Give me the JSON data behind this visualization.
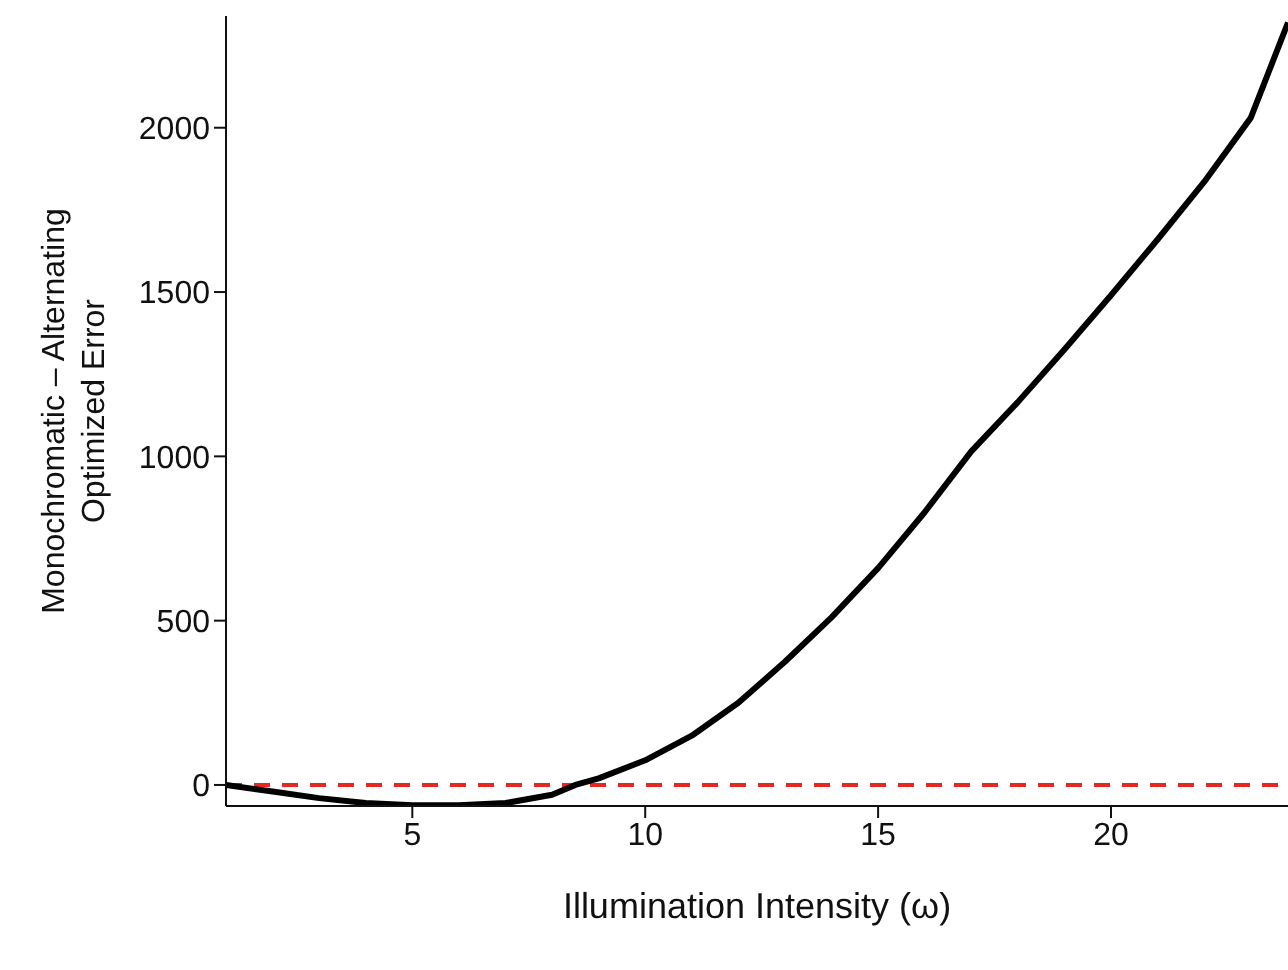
{
  "chart_data": {
    "type": "line",
    "xlabel": "Illumination Intensity (ω)",
    "ylabel": "Monochromatic – Alternating Optimized Error",
    "x": [
      1,
      2,
      3,
      4,
      5,
      6,
      7,
      8,
      8.5,
      9,
      10,
      11,
      12,
      13,
      14,
      15,
      16,
      17,
      18,
      19,
      20,
      21,
      22,
      23,
      23.8
    ],
    "series": [
      {
        "color": "#000000",
        "values": [
          0,
          -20,
          -40,
          -55,
          -62,
          -62,
          -55,
          -30,
          0,
          20,
          75,
          150,
          250,
          375,
          510,
          660,
          830,
          1015,
          1165,
          1325,
          1490,
          1660,
          1835,
          2030,
          2320
        ]
      }
    ],
    "xlim": [
      1,
      23.8
    ],
    "xticks": [
      5,
      10,
      15,
      20
    ],
    "ylim": [
      -64,
      2340
    ],
    "yticks": [
      0,
      500,
      1000,
      1500,
      2000
    ],
    "ref_lines": [
      {
        "axis": "y",
        "value": 0,
        "color": "#e8281e",
        "line_style": "dashed"
      }
    ],
    "grid": false,
    "legend": false,
    "marker": "none",
    "line_style": "solid"
  }
}
